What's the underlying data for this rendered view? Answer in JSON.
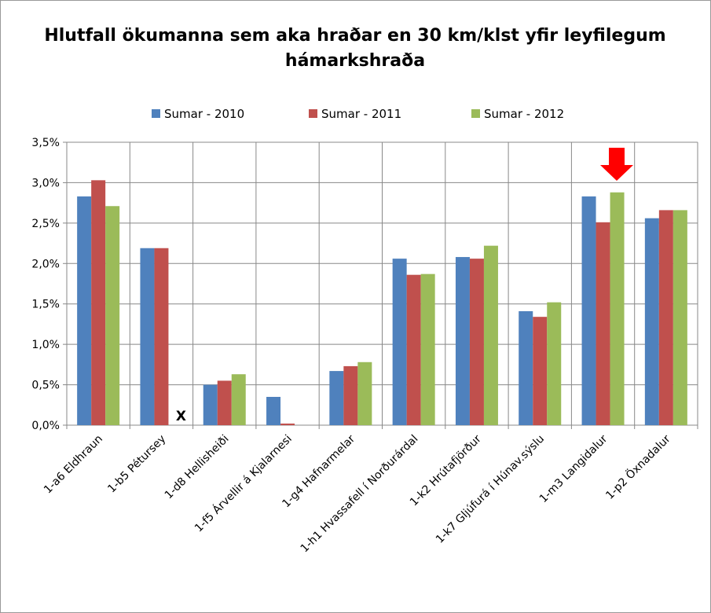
{
  "chart_data": {
    "type": "bar",
    "title": "Hlutfall ökumanna sem aka hraðar en 30 km/klst yfir leyfilegum hámarkshraða",
    "categories": [
      "1-a6 Eldhraun",
      "1-b5 Pétursey",
      "1-d8 Hellisheiði",
      "1-f5 Árvellir á Kjalarnesi",
      "1-g4 Hafnarmelar",
      "1-h1 Hvassafell í Norðurárdal",
      "1-k2 Hrútafjörður",
      "1-k7 Gljúfurá í Húnav.sýslu",
      "1-m3 Langidalur",
      "1-p2 Öxnadalur"
    ],
    "series": [
      {
        "name": "Sumar - 2010",
        "color": "#4f81bd",
        "values": [
          2.83,
          2.19,
          0.5,
          0.35,
          0.67,
          2.06,
          2.08,
          1.41,
          2.83,
          2.56
        ]
      },
      {
        "name": "Sumar - 2011",
        "color": "#c0504d",
        "values": [
          3.03,
          2.19,
          0.55,
          0.02,
          0.73,
          1.86,
          2.06,
          1.34,
          2.51,
          2.66
        ]
      },
      {
        "name": "Sumar - 2012",
        "color": "#9bbb59",
        "values": [
          2.71,
          null,
          0.63,
          null,
          0.78,
          1.87,
          2.22,
          1.52,
          2.88,
          2.66
        ]
      }
    ],
    "annotations": [
      "X"
    ],
    "ylim": [
      0,
      3.5
    ],
    "yticks": [
      {
        "value": 0,
        "label": "0,0%"
      },
      {
        "value": 0.5,
        "label": "0,5%"
      },
      {
        "value": 1.0,
        "label": "1,0%"
      },
      {
        "value": 1.5,
        "label": "1,5%"
      },
      {
        "value": 2.0,
        "label": "2,0%"
      },
      {
        "value": 2.5,
        "label": "2,5%"
      },
      {
        "value": 3.0,
        "label": "3,0%"
      },
      {
        "value": 3.5,
        "label": "3,5%"
      }
    ],
    "grid": true,
    "legend": "top"
  }
}
